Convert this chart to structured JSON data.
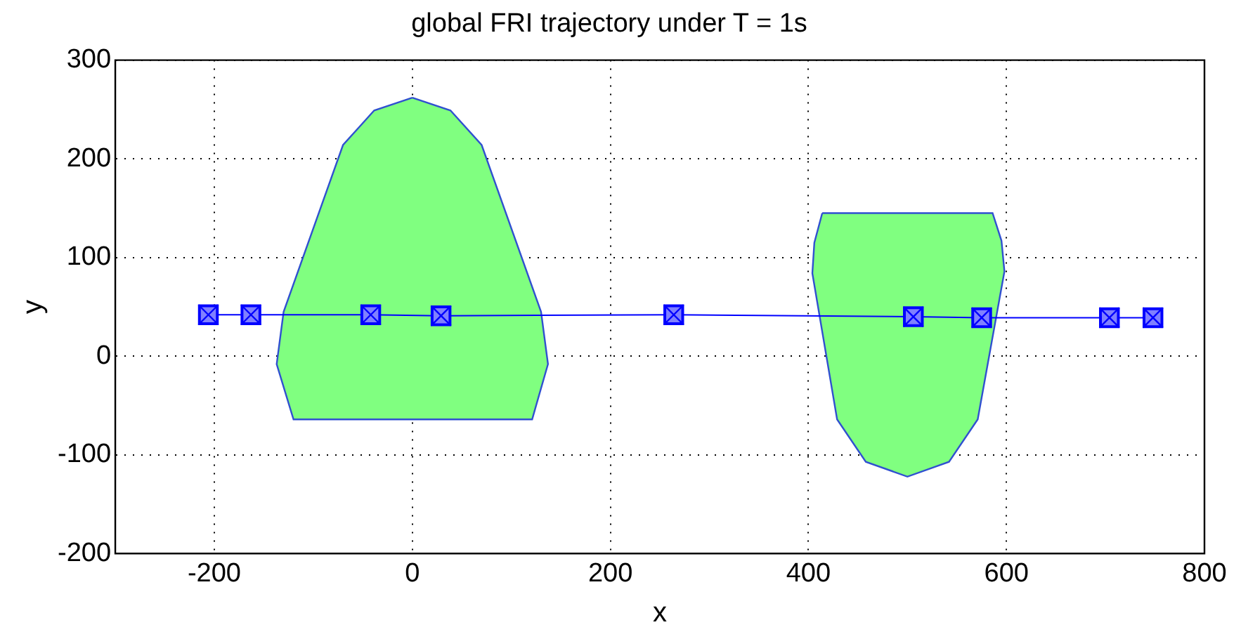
{
  "chart_data": {
    "type": "line",
    "title": "global FRI trajectory under T = 1s",
    "xlabel": "x",
    "ylabel": "y",
    "series": [
      {
        "type": "area",
        "color": "#80ff80",
        "x": [
          0,
          38.5,
          70,
          130,
          137,
          121,
          -120,
          -137,
          -130,
          -70,
          -38.5,
          0
        ],
        "values": [
          262,
          249,
          214,
          45,
          -8,
          -64,
          -64,
          -8,
          45,
          214,
          249,
          262
        ]
      },
      {
        "type": "area",
        "color": "#80ff80",
        "x": [
          414,
          586,
          595,
          598,
          571,
          542,
          500,
          458,
          429,
          404,
          406,
          414
        ],
        "values": [
          145,
          145,
          117,
          86,
          -64,
          -107,
          -122,
          -107,
          -64,
          84,
          115,
          145
        ]
      },
      {
        "type": "line",
        "color": "#0000ff",
        "marker": "square",
        "x": [
          -206,
          -163,
          -42,
          29,
          264,
          506,
          575,
          704,
          748
        ],
        "values": [
          42,
          42,
          42,
          41,
          42,
          40,
          39,
          39,
          39
        ]
      }
    ],
    "xlim": [
      -300,
      800
    ],
    "xticks": [
      -200,
      0,
      200,
      400,
      600,
      800
    ],
    "ylim": [
      -200,
      300
    ],
    "yticks": [
      -200,
      -100,
      0,
      100,
      200,
      300
    ],
    "grid": true,
    "legend": false
  }
}
